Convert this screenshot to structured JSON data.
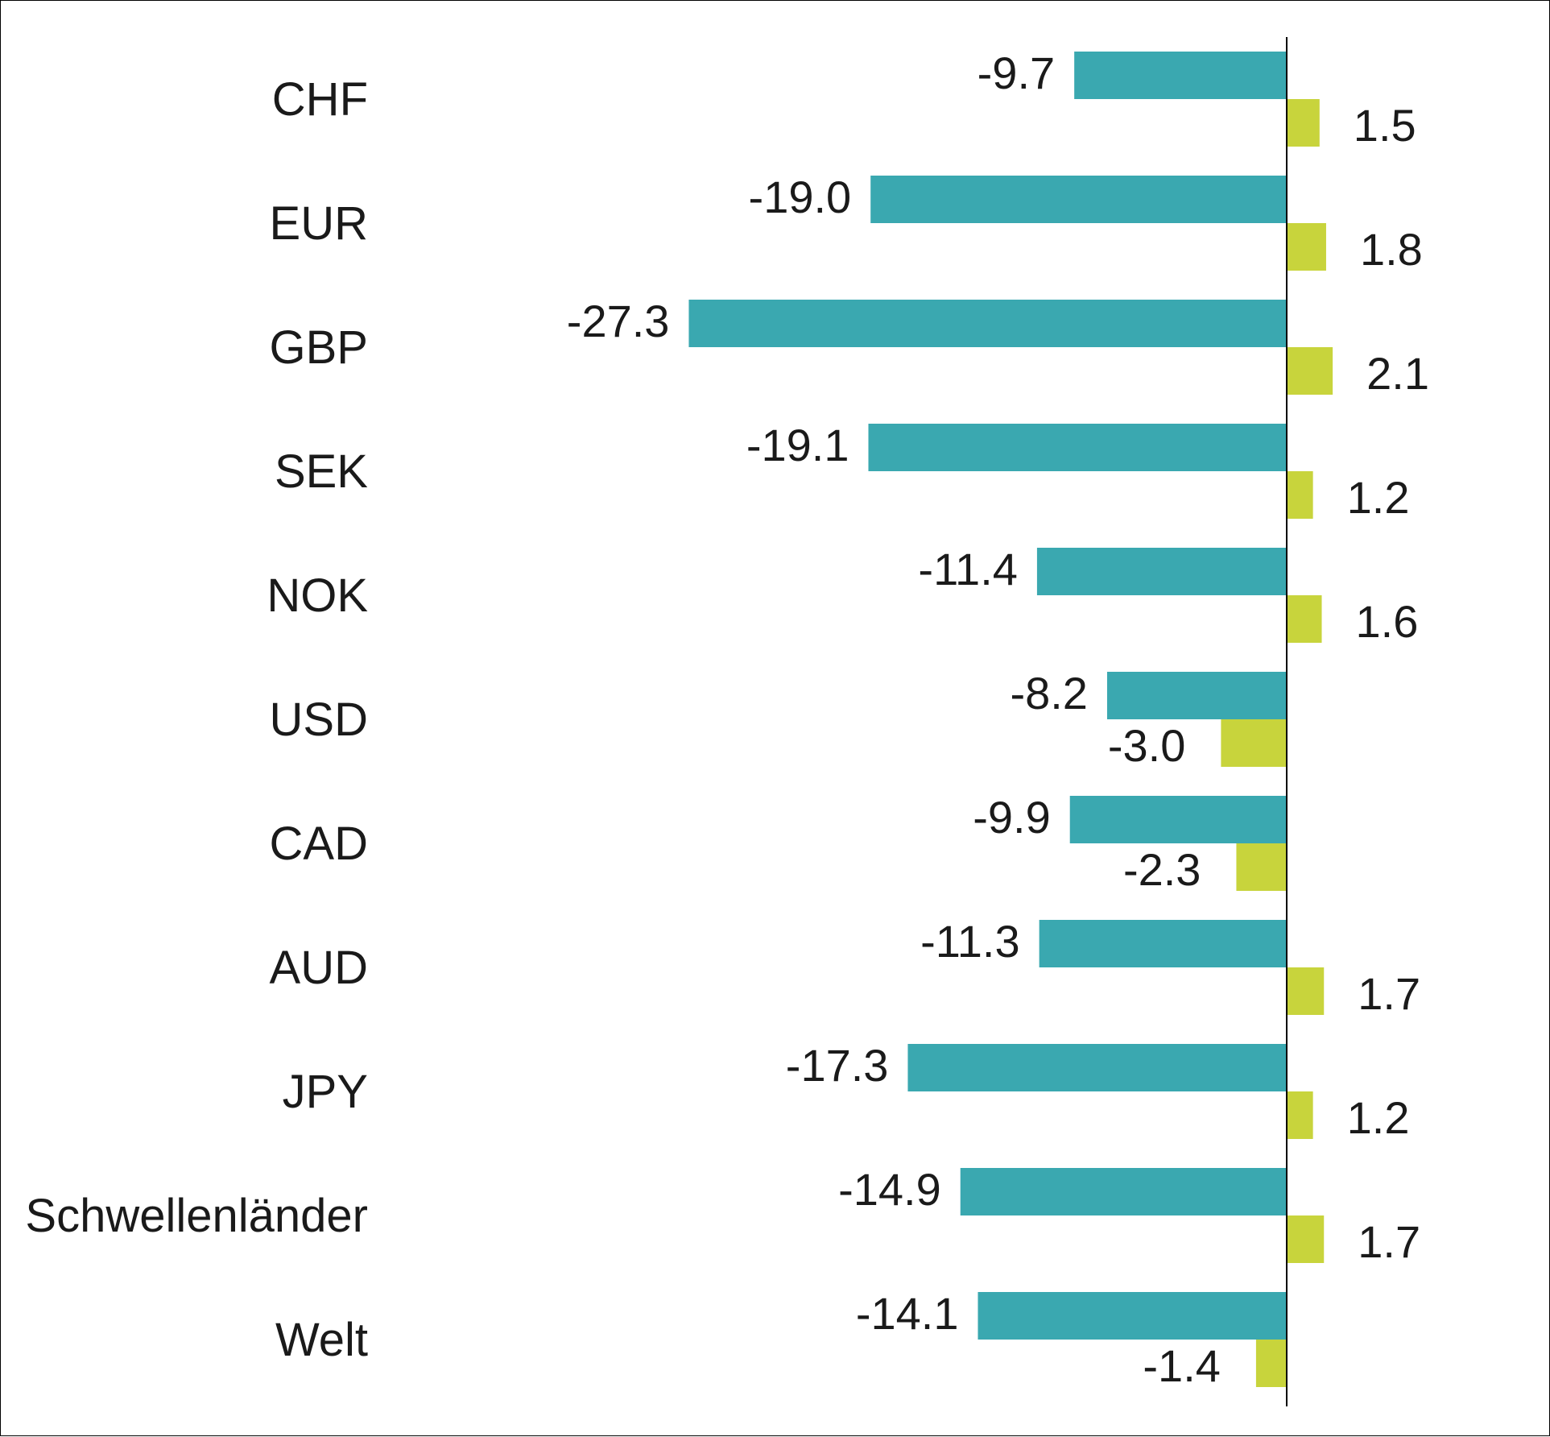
{
  "chart_data": {
    "type": "bar",
    "orientation": "horizontal",
    "categories": [
      "CHF",
      "EUR",
      "GBP",
      "SEK",
      "NOK",
      "USD",
      "CAD",
      "AUD",
      "JPY",
      "Schwellenländer",
      "Welt"
    ],
    "series": [
      {
        "values": [
          -9.7,
          -19.0,
          -27.3,
          -19.1,
          -11.4,
          -8.2,
          -9.9,
          -11.3,
          -17.3,
          -14.9,
          -14.1
        ],
        "labels": [
          "-9.7",
          "-19.0",
          "-27.3",
          "-19.1",
          "-11.4",
          "-8.2",
          "-9.9",
          "-11.3",
          "-17.3",
          "-14.9",
          "-14.1"
        ],
        "color": "#3aa8b0"
      },
      {
        "values": [
          1.5,
          1.8,
          2.1,
          1.2,
          1.6,
          -3.0,
          -2.3,
          1.7,
          1.2,
          1.7,
          -1.4
        ],
        "labels": [
          "1.5",
          "1.8",
          "2.1",
          "1.2",
          "1.6",
          "-3.0",
          "-2.3",
          "1.7",
          "1.2",
          "1.7",
          "-1.4"
        ],
        "color": "#c8d43c"
      }
    ],
    "title": "",
    "xlabel": "",
    "ylabel": "",
    "grid": false,
    "legend": "none",
    "zero_line_color": "#000000"
  }
}
